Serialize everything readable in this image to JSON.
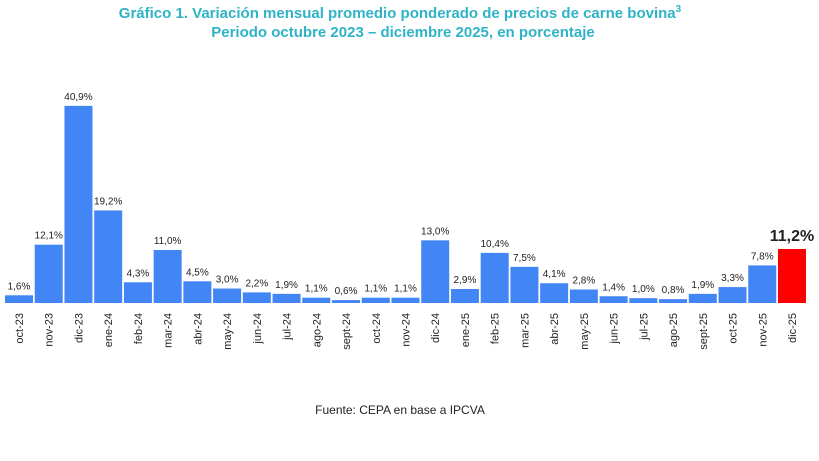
{
  "chart_data": {
    "type": "bar",
    "title": "Gráfico 1. Variación mensual promedio ponderado de precios de carne bovina",
    "title_superscript": "3",
    "subtitle": "Periodo octubre 2023 – diciembre 2025, en porcentaje",
    "source": "Fuente: CEPA en base a IPCVA",
    "categories": [
      "oct-23",
      "nov-23",
      "dic-23",
      "ene-24",
      "feb-24",
      "mar-24",
      "abr-24",
      "may-24",
      "jun-24",
      "jul-24",
      "ago-24",
      "sept-24",
      "oct-24",
      "nov-24",
      "dic-24",
      "ene-25",
      "feb-25",
      "mar-25",
      "abr-25",
      "may-25",
      "jun-25",
      "jul-25",
      "ago-25",
      "sept-25",
      "oct-25",
      "nov-25",
      "dic-25"
    ],
    "values": [
      1.6,
      12.1,
      40.9,
      19.2,
      4.3,
      11.0,
      4.5,
      3.0,
      2.2,
      1.9,
      1.1,
      0.6,
      1.1,
      1.1,
      13.0,
      2.9,
      10.4,
      7.5,
      4.1,
      2.8,
      1.4,
      1.0,
      0.8,
      1.9,
      3.3,
      7.8,
      11.2
    ],
    "value_labels": [
      "1,6%",
      "12,1%",
      "40,9%",
      "19,2%",
      "4,3%",
      "11,0%",
      "4,5%",
      "3,0%",
      "2,2%",
      "1,9%",
      "1,1%",
      "0,6%",
      "1,1%",
      "1,1%",
      "13,0%",
      "2,9%",
      "10,4%",
      "7,5%",
      "4,1%",
      "2,8%",
      "1,4%",
      "1,0%",
      "0,8%",
      "1,9%",
      "3,3%",
      "7,8%",
      "11,2%"
    ],
    "colors": [
      "#4285f4",
      "#4285f4",
      "#4285f4",
      "#4285f4",
      "#4285f4",
      "#4285f4",
      "#4285f4",
      "#4285f4",
      "#4285f4",
      "#4285f4",
      "#4285f4",
      "#4285f4",
      "#4285f4",
      "#4285f4",
      "#4285f4",
      "#4285f4",
      "#4285f4",
      "#4285f4",
      "#4285f4",
      "#4285f4",
      "#4285f4",
      "#4285f4",
      "#4285f4",
      "#4285f4",
      "#4285f4",
      "#4285f4",
      "#ff0000"
    ]
  }
}
